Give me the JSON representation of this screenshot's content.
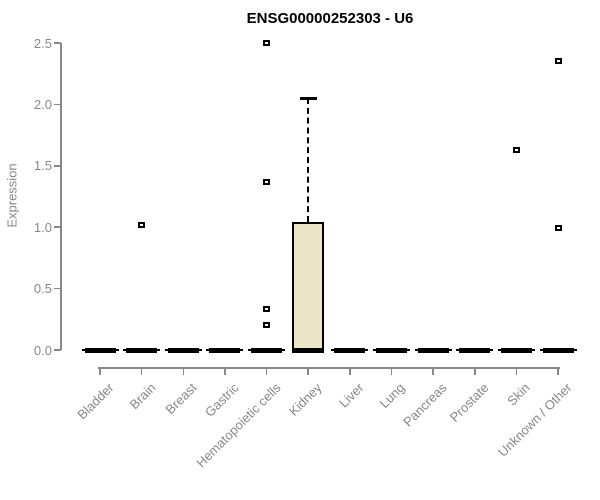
{
  "title": "ENSG00000252303 - U6",
  "chart_data": {
    "type": "boxplot",
    "title": "ENSG00000252303 - U6",
    "xlabel": "",
    "ylabel": "Expression",
    "ylim": [
      0,
      2.5
    ],
    "ytick_labels": [
      "0.0",
      "0.5",
      "1.0",
      "1.5",
      "2.0",
      "2.5"
    ],
    "ytick_values": [
      0,
      0.5,
      1.0,
      1.5,
      2.0,
      2.5
    ],
    "grid": false,
    "legend": false,
    "box_fill_color": "#ece6c9",
    "box_line_color": "#000000",
    "axis_color": "#888888",
    "categories": [
      "Bladder",
      "Brain",
      "Breast",
      "Gastric",
      "Hematopoietic cells",
      "Kidney",
      "Liver",
      "Lung",
      "Pancreas",
      "Prostate",
      "Skin",
      "Unknown / Other"
    ],
    "boxes": [
      {
        "category": "Bladder",
        "median": 0,
        "q1": 0,
        "q3": 0,
        "whisker_low": 0,
        "whisker_high": 0,
        "outliers": []
      },
      {
        "category": "Brain",
        "median": 0,
        "q1": 0,
        "q3": 0,
        "whisker_low": 0,
        "whisker_high": 0,
        "outliers": [
          1.02
        ]
      },
      {
        "category": "Breast",
        "median": 0,
        "q1": 0,
        "q3": 0,
        "whisker_low": 0,
        "whisker_high": 0,
        "outliers": []
      },
      {
        "category": "Gastric",
        "median": 0,
        "q1": 0,
        "q3": 0,
        "whisker_low": 0,
        "whisker_high": 0,
        "outliers": []
      },
      {
        "category": "Hematopoietic cells",
        "median": 0,
        "q1": 0,
        "q3": 0,
        "whisker_low": 0,
        "whisker_high": 0,
        "outliers": [
          2.5,
          1.37,
          0.33,
          0.2
        ]
      },
      {
        "category": "Kidney",
        "median": 0,
        "q1": 0,
        "q3": 1.04,
        "whisker_low": 0,
        "whisker_high": 2.05,
        "outliers": []
      },
      {
        "category": "Liver",
        "median": 0,
        "q1": 0,
        "q3": 0,
        "whisker_low": 0,
        "whisker_high": 0,
        "outliers": []
      },
      {
        "category": "Lung",
        "median": 0,
        "q1": 0,
        "q3": 0,
        "whisker_low": 0,
        "whisker_high": 0,
        "outliers": []
      },
      {
        "category": "Pancreas",
        "median": 0,
        "q1": 0,
        "q3": 0,
        "whisker_low": 0,
        "whisker_high": 0,
        "outliers": []
      },
      {
        "category": "Prostate",
        "median": 0,
        "q1": 0,
        "q3": 0,
        "whisker_low": 0,
        "whisker_high": 0,
        "outliers": []
      },
      {
        "category": "Skin",
        "median": 0,
        "q1": 0,
        "q3": 0,
        "whisker_low": 0,
        "whisker_high": 0,
        "outliers": [
          1.63
        ]
      },
      {
        "category": "Unknown / Other",
        "median": 0,
        "q1": 0,
        "q3": 0,
        "whisker_low": 0,
        "whisker_high": 0,
        "outliers": [
          2.35,
          0.99
        ]
      }
    ]
  }
}
